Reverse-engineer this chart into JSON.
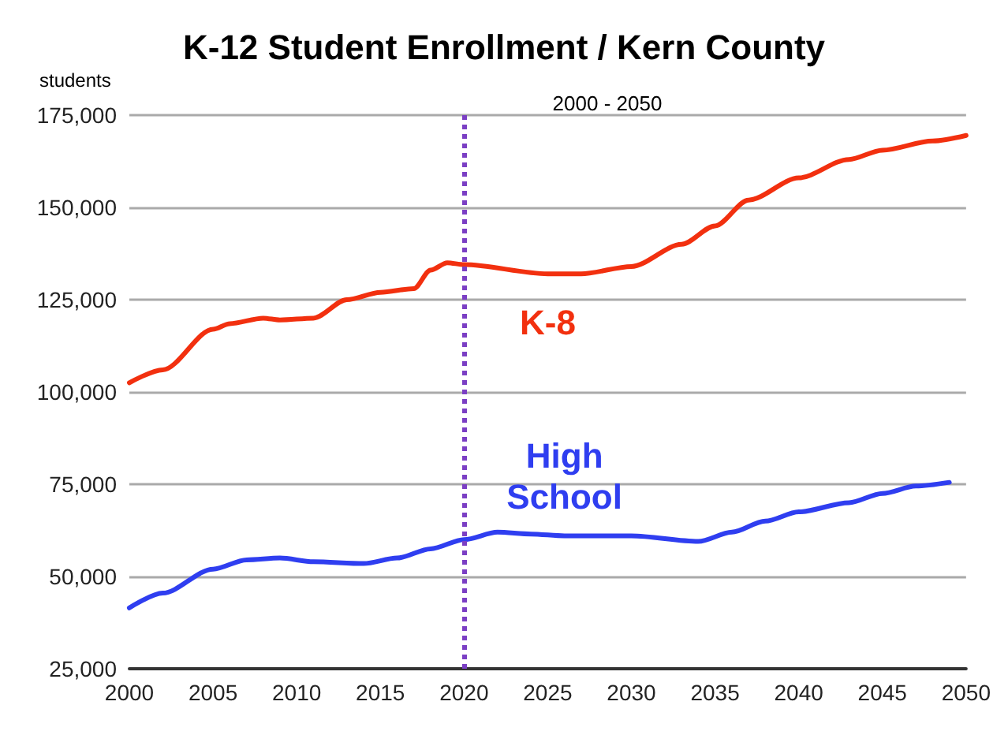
{
  "chart_data": {
    "type": "line",
    "title": "K-12 Student Enrollment / Kern County",
    "subtitle": "2000 - 2050",
    "ylabel": "students",
    "xlim": [
      2000,
      2050
    ],
    "xticks": [
      2000,
      2005,
      2010,
      2015,
      2020,
      2025,
      2030,
      2035,
      2040,
      2045,
      2050
    ],
    "ylim": [
      25000,
      175000
    ],
    "yticks": [
      {
        "value": 25000,
        "label": "25,000"
      },
      {
        "value": 50000,
        "label": "50,000"
      },
      {
        "value": 75000,
        "label": "75,000"
      },
      {
        "value": 100000,
        "label": "100,000"
      },
      {
        "value": 125000,
        "label": "125,000"
      },
      {
        "value": 150000,
        "label": "150,000"
      },
      {
        "value": 175000,
        "label": "175,000"
      }
    ],
    "grid": "y",
    "legend": false,
    "marker": "none",
    "line_style": "solid",
    "ref_lines": [
      {
        "axis": "x",
        "value": 2020,
        "color": "#7b3fc4",
        "line_style": "dotted"
      }
    ],
    "series": [
      {
        "name": "K-8",
        "color": "#f2300f",
        "x": [
          2000,
          2002,
          2005,
          2006,
          2008,
          2009,
          2011,
          2013,
          2015,
          2017,
          2018,
          2019,
          2020,
          2025,
          2027,
          2030,
          2033,
          2035,
          2037,
          2040,
          2043,
          2045,
          2048,
          2050
        ],
        "values": [
          102500,
          106000,
          117000,
          118500,
          120000,
          119500,
          120000,
          125000,
          127000,
          128000,
          133000,
          135000,
          134500,
          132000,
          132000,
          134000,
          140000,
          145000,
          152000,
          158000,
          163000,
          165500,
          168000,
          169500
        ]
      },
      {
        "name": "High School",
        "color": "#2f3ef0",
        "x": [
          2000,
          2002,
          2005,
          2007,
          2009,
          2011,
          2014,
          2016,
          2018,
          2020,
          2022,
          2024,
          2026,
          2030,
          2034,
          2036,
          2038,
          2040,
          2043,
          2045,
          2047,
          2049
        ],
        "values": [
          41500,
          45500,
          52000,
          54500,
          55000,
          54000,
          53500,
          55000,
          57500,
          60000,
          62000,
          61500,
          61000,
          61000,
          59500,
          62000,
          65000,
          67500,
          70000,
          72500,
          74500,
          75500
        ]
      }
    ]
  }
}
